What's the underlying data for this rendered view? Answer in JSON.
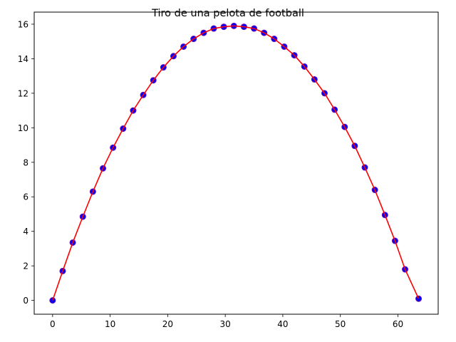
{
  "chart_data": {
    "type": "scatter",
    "title": "Tiro de una pelota de football",
    "xlabel": "",
    "ylabel": "",
    "xlim": [
      -3.2,
      67
    ],
    "ylim": [
      -0.8,
      16.7
    ],
    "xticks": [
      0,
      10,
      20,
      30,
      40,
      50,
      60
    ],
    "yticks": [
      0,
      2,
      4,
      6,
      8,
      10,
      12,
      14,
      16
    ],
    "grid": false,
    "series": [
      {
        "kind": "points",
        "color": "#0000ff",
        "edge_color": "#6a0dad",
        "x": [
          0,
          1.75,
          3.5,
          5.25,
          7.0,
          8.75,
          10.5,
          12.25,
          14.0,
          15.75,
          17.5,
          19.25,
          21.0,
          22.75,
          24.5,
          26.25,
          28.0,
          29.75,
          31.5,
          33.25,
          35.0,
          36.75,
          38.5,
          40.25,
          42.0,
          43.75,
          45.5,
          47.25,
          49.0,
          50.75,
          52.5,
          54.25,
          56.0,
          57.75,
          59.5,
          61.25,
          63.6
        ],
        "y": [
          0.0,
          1.7,
          3.35,
          4.85,
          6.3,
          7.65,
          8.85,
          9.95,
          11.0,
          11.9,
          12.75,
          13.5,
          14.15,
          14.7,
          15.15,
          15.5,
          15.75,
          15.85,
          15.9,
          15.85,
          15.75,
          15.5,
          15.15,
          14.7,
          14.2,
          13.55,
          12.8,
          12.0,
          11.05,
          10.05,
          8.95,
          7.7,
          6.4,
          4.95,
          3.45,
          1.8,
          0.1
        ]
      },
      {
        "kind": "line",
        "color": "#ff0000",
        "x": [
          0,
          1.75,
          3.5,
          5.25,
          7.0,
          8.75,
          10.5,
          12.25,
          14.0,
          15.75,
          17.5,
          19.25,
          21.0,
          22.75,
          24.5,
          26.25,
          28.0,
          29.75,
          31.5,
          33.25,
          35.0,
          36.75,
          38.5,
          40.25,
          42.0,
          43.75,
          45.5,
          47.25,
          49.0,
          50.75,
          52.5,
          54.25,
          56.0,
          57.75,
          59.5,
          61.25,
          63.6
        ],
        "y": [
          0.0,
          1.7,
          3.35,
          4.85,
          6.3,
          7.65,
          8.85,
          9.95,
          11.0,
          11.9,
          12.75,
          13.5,
          14.15,
          14.7,
          15.15,
          15.5,
          15.75,
          15.85,
          15.9,
          15.85,
          15.75,
          15.5,
          15.15,
          14.7,
          14.2,
          13.55,
          12.8,
          12.0,
          11.05,
          10.05,
          8.95,
          7.7,
          6.4,
          4.95,
          3.45,
          1.8,
          0.1
        ]
      }
    ]
  }
}
